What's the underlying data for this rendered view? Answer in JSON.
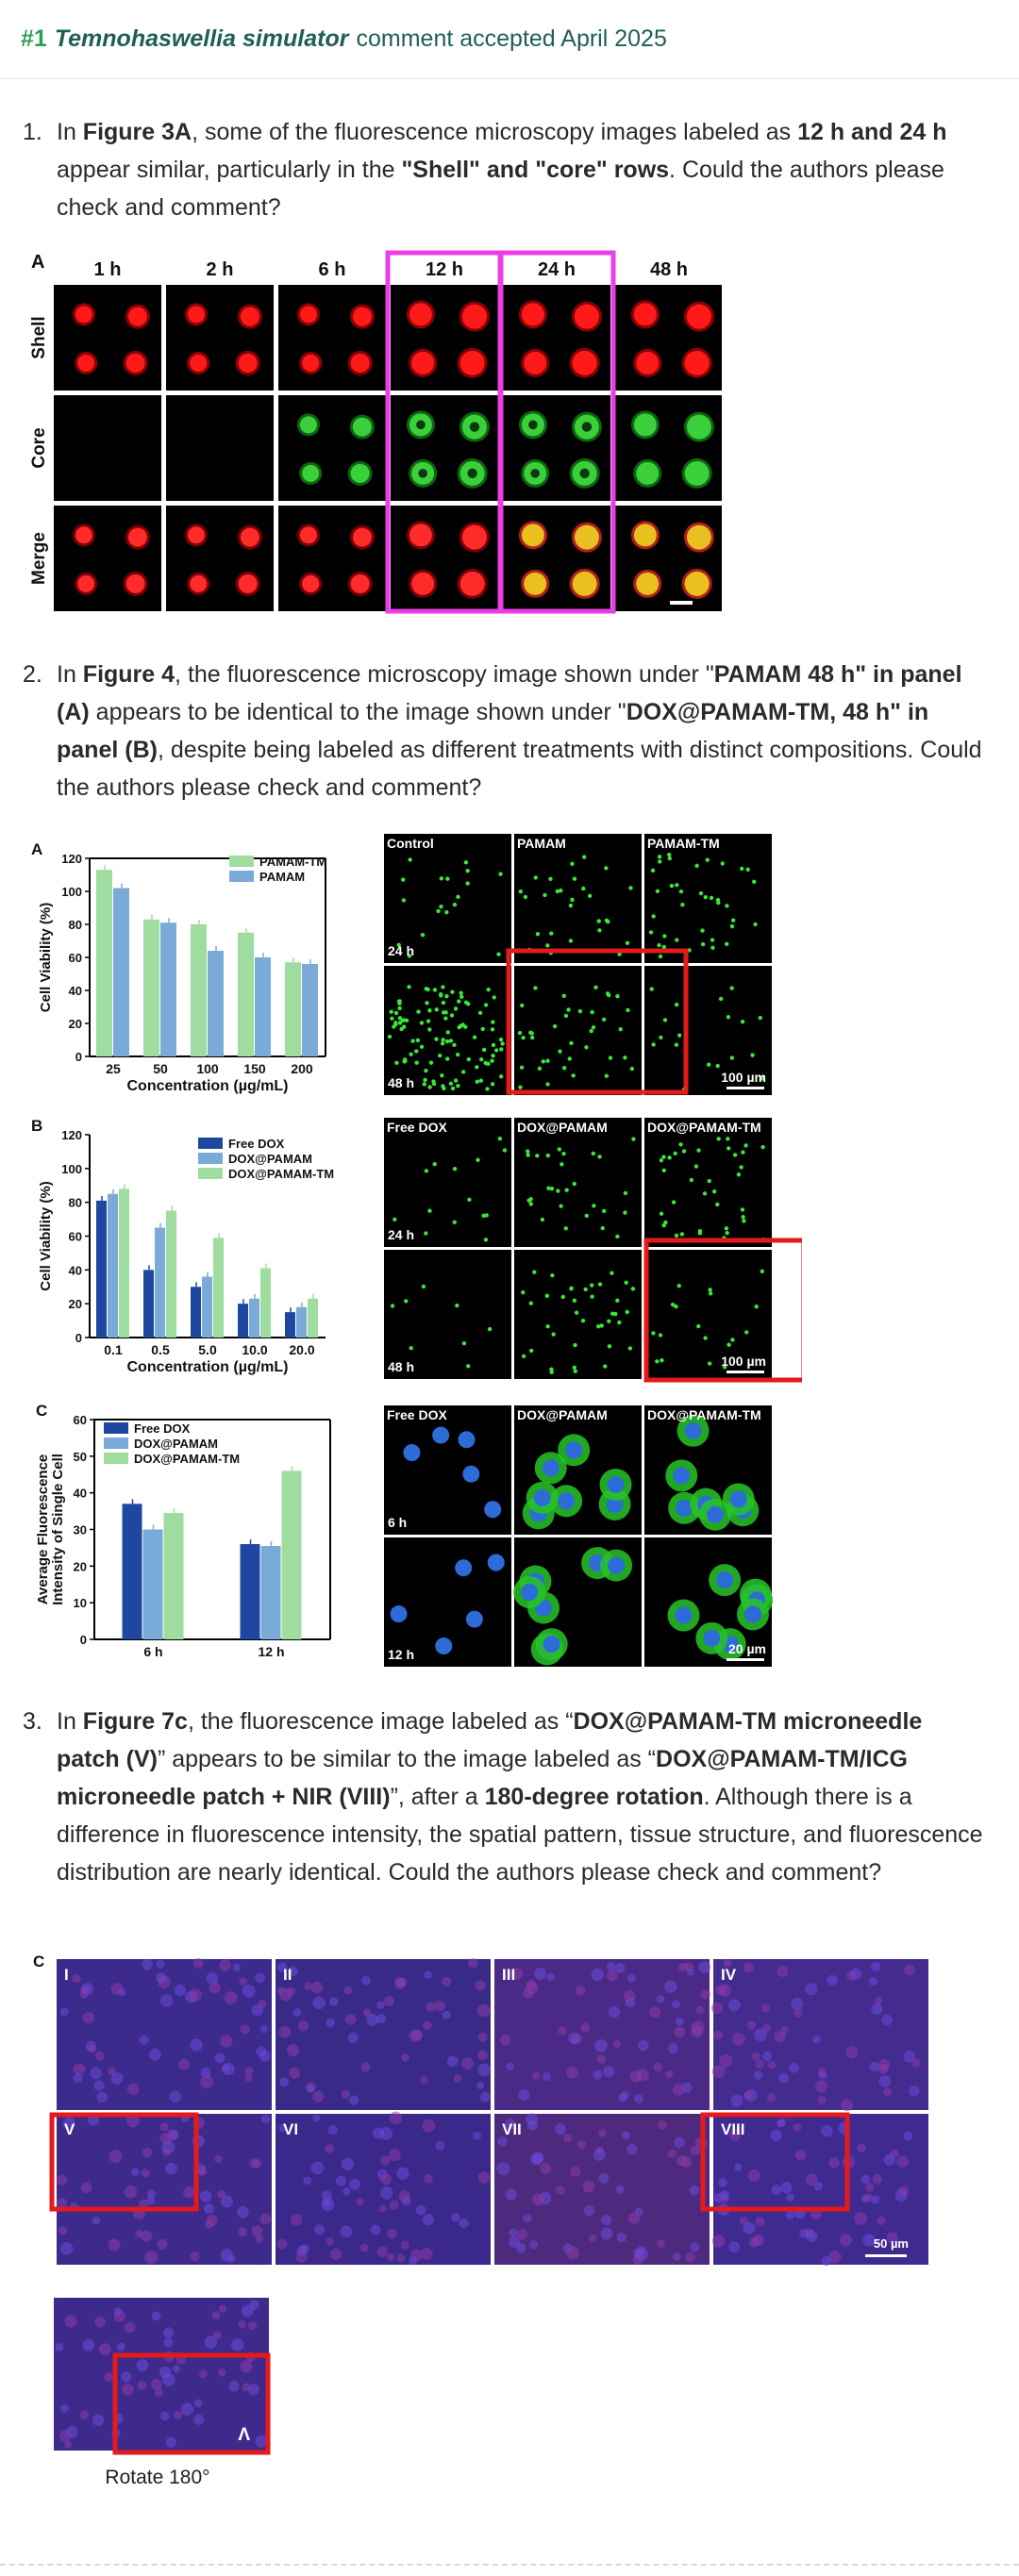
{
  "header": {
    "number": "#1",
    "species": "Temnohaswellia simulator",
    "status": "comment accepted April 2025"
  },
  "comments": [
    {
      "n": "1.",
      "segments": [
        {
          "t": "In ",
          "b": false
        },
        {
          "t": "Figure 3A",
          "b": true
        },
        {
          "t": ", some of the fluorescence microscopy images labeled as ",
          "b": false
        },
        {
          "t": "12 h and 24 h",
          "b": true
        },
        {
          "t": " appear similar, particularly in the ",
          "b": false
        },
        {
          "t": "\"Shell\" and \"core\" rows",
          "b": true
        },
        {
          "t": ". Could the authors please check and comment?",
          "b": false
        }
      ]
    },
    {
      "n": "2.",
      "segments": [
        {
          "t": "In ",
          "b": false
        },
        {
          "t": "Figure 4",
          "b": true
        },
        {
          "t": ", the fluorescence microscopy image shown under \"",
          "b": false
        },
        {
          "t": "PAMAM 48 h\" in panel (A)",
          "b": true
        },
        {
          "t": " appears to be identical to the image shown under \"",
          "b": false
        },
        {
          "t": "DOX@PAMAM-TM, 48 h\" in panel (B)",
          "b": true
        },
        {
          "t": ", despite being labeled as different treatments with distinct compositions. Could the authors please check and comment?",
          "b": false
        }
      ]
    },
    {
      "n": "3.",
      "segments": [
        {
          "t": "In ",
          "b": false
        },
        {
          "t": "Figure 7c",
          "b": true
        },
        {
          "t": ", the fluorescence image labeled as “",
          "b": false
        },
        {
          "t": "DOX@PAMAM-TM microneedle patch (V)",
          "b": true
        },
        {
          "t": "” appears to be similar to the image labeled as “",
          "b": false
        },
        {
          "t": "DOX@PAMAM-TM/ICG microneedle patch + NIR (VIII)",
          "b": true
        },
        {
          "t": "”, after a ",
          "b": false
        },
        {
          "t": "180-degree rotation",
          "b": true
        },
        {
          "t": ". Although there is a difference in fluorescence intensity, the spatial pattern, tissue structure, and fluorescence distribution are nearly identical. Could the authors please check and comment?",
          "b": false
        }
      ]
    }
  ],
  "fig3": {
    "panel": "A",
    "columns": [
      "1 h",
      "2 h",
      "6 h",
      "12 h",
      "24 h",
      "48 h"
    ],
    "rows": [
      "Shell",
      "Core",
      "Merge"
    ],
    "highlight_color": "#ea3fe6"
  },
  "fig4": {
    "A": {
      "panel": "A",
      "ylabel": "Cell Viability (%)",
      "xlabel": "Concentration (µg/mL)",
      "yticks": [
        "0",
        "20",
        "40",
        "60",
        "80",
        "100",
        "120"
      ],
      "categories": [
        "25",
        "50",
        "100",
        "150",
        "200"
      ],
      "legend": [
        "PAMAM-TM",
        "PAMAM"
      ],
      "images": {
        "cols": [
          "Control",
          "PAMAM",
          "PAMAM-TM"
        ],
        "rows": [
          "24 h",
          "48 h"
        ],
        "scale": "100 µm"
      }
    },
    "B": {
      "panel": "B",
      "ylabel": "Cell Viability (%)",
      "xlabel": "Concentration (µg/mL)",
      "yticks": [
        "0",
        "20",
        "40",
        "60",
        "80",
        "100",
        "120"
      ],
      "categories": [
        "0.1",
        "0.5",
        "5.0",
        "10.0",
        "20.0"
      ],
      "legend": [
        "Free DOX",
        "DOX@PAMAM",
        "DOX@PAMAM-TM"
      ],
      "images": {
        "cols": [
          "Free DOX",
          "DOX@PAMAM",
          "DOX@PAMAM-TM"
        ],
        "rows": [
          "24 h",
          "48 h"
        ],
        "scale": "100 µm"
      }
    },
    "C": {
      "panel": "C",
      "ylabel1": "Average Fluorescence",
      "ylabel2": "Intensity of Single Cell",
      "yticks": [
        "0",
        "10",
        "20",
        "30",
        "40",
        "50",
        "60"
      ],
      "categories": [
        "6 h",
        "12 h"
      ],
      "legend": [
        "Free DOX",
        "DOX@PAMAM",
        "DOX@PAMAM-TM"
      ],
      "images": {
        "cols": [
          "Free DOX",
          "DOX@PAMAM",
          "DOX@PAMAM-TM"
        ],
        "rows": [
          "6 h",
          "12 h"
        ],
        "scale": "20 µm"
      }
    }
  },
  "fig7": {
    "panel": "C",
    "tiles": [
      "I",
      "II",
      "III",
      "IV",
      "V",
      "VI",
      "VII",
      "VIII"
    ],
    "scale": "50 µm",
    "rotate_caption": "Rotate 180°",
    "rotate_glyph": "Λ"
  },
  "colors": {
    "green_bar": "#9fdc9f",
    "blue_bar": "#7aaad8",
    "navy_bar": "#1f47a0",
    "highlight_red": "#e51a1a",
    "highlight_magenta": "#ea3fe6"
  },
  "chart_data": [
    {
      "type": "bar",
      "title": "",
      "xlabel": "Concentration (µg/mL)",
      "ylabel": "Cell Viability (%)",
      "ylim": [
        0,
        120
      ],
      "categories": [
        "25",
        "50",
        "100",
        "150",
        "200"
      ],
      "series": [
        {
          "name": "PAMAM-TM",
          "values": [
            113,
            83,
            80,
            75,
            57
          ]
        },
        {
          "name": "PAMAM",
          "values": [
            102,
            81,
            64,
            60,
            56
          ]
        }
      ]
    },
    {
      "type": "bar",
      "title": "",
      "xlabel": "Concentration (µg/mL)",
      "ylabel": "Cell Viability (%)",
      "ylim": [
        0,
        120
      ],
      "categories": [
        "0.1",
        "0.5",
        "5.0",
        "10.0",
        "20.0"
      ],
      "series": [
        {
          "name": "Free DOX",
          "values": [
            81,
            40,
            30,
            20,
            15
          ]
        },
        {
          "name": "DOX@PAMAM",
          "values": [
            85,
            65,
            36,
            23,
            18
          ]
        },
        {
          "name": "DOX@PAMAM-TM",
          "values": [
            88,
            75,
            59,
            41,
            23
          ]
        }
      ]
    },
    {
      "type": "bar",
      "title": "",
      "xlabel": "",
      "ylabel": "Average Fluorescence Intensity of Single Cell",
      "ylim": [
        0,
        60
      ],
      "categories": [
        "6 h",
        "12 h"
      ],
      "series": [
        {
          "name": "Free DOX",
          "values": [
            37,
            26
          ]
        },
        {
          "name": "DOX@PAMAM",
          "values": [
            30,
            25.5
          ]
        },
        {
          "name": "DOX@PAMAM-TM",
          "values": [
            34.5,
            46
          ]
        }
      ]
    }
  ]
}
